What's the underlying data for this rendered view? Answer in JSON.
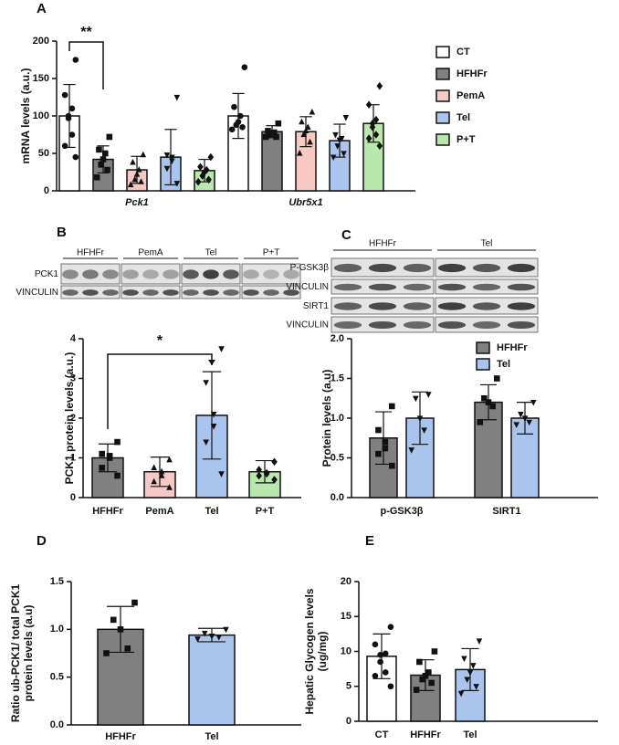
{
  "chart_data": [
    {
      "type": "bar",
      "panel": "A",
      "ylabel": "mRNA levels (a.u.)",
      "categories": [
        "Pck1",
        "Ubr5x1"
      ],
      "ylim": [
        0,
        200
      ],
      "yticks": [
        0,
        50,
        100,
        150,
        200
      ],
      "legend": "right",
      "annotations": [
        "**"
      ],
      "series": [
        {
          "name": "CT",
          "color": "#ffffff",
          "marker": "circle",
          "values": [
            100,
            100
          ],
          "errors": [
            42,
            30
          ],
          "points": [
            [
              175,
              128,
              110,
              100,
              97,
              75,
              60,
              45
            ],
            [
              165,
              112,
              100,
              92,
              88,
              85,
              82
            ]
          ]
        },
        {
          "name": "HFHFr",
          "color": "#808080",
          "marker": "square",
          "values": [
            42,
            79
          ],
          "errors": [
            18,
            8
          ],
          "points": [
            [
              72,
              55,
              50,
              42,
              35,
              28,
              18
            ],
            [
              90,
              80,
              78,
              77,
              75,
              72,
              72
            ]
          ]
        },
        {
          "name": "PemA",
          "color": "#f6c9c2",
          "marker": "triangle",
          "values": [
            28,
            79
          ],
          "errors": [
            18,
            20
          ],
          "points": [
            [
              48,
              38,
              28,
              22,
              15,
              12,
              8
            ],
            [
              105,
              92,
              85,
              80,
              75,
              65,
              50
            ]
          ]
        },
        {
          "name": "Tel",
          "color": "#a9c5ee",
          "marker": "triangle-down",
          "values": [
            45,
            67
          ],
          "errors": [
            37,
            22
          ],
          "points": [
            [
              125,
              48,
              45,
              40,
              30,
              10
            ],
            [
              98,
              75,
              70,
              68,
              60,
              50,
              45
            ]
          ]
        },
        {
          "name": "P+T",
          "color": "#b8e8ab",
          "marker": "diamond",
          "values": [
            27,
            90
          ],
          "errors": [
            15,
            25
          ],
          "points": [
            [
              45,
              32,
              28,
              25,
              20,
              15,
              12
            ],
            [
              140,
              115,
              95,
              90,
              85,
              75,
              70,
              60
            ]
          ]
        }
      ]
    },
    {
      "type": "bar",
      "panel": "B",
      "ylabel": "PCK1 protein levels (a.u.)",
      "blot_lanes": [
        "HFHFr",
        "PemA",
        "Tel",
        "P+T"
      ],
      "blot_rows": [
        "PCK1",
        "VINCULIN"
      ],
      "categories": [
        "HFHFr",
        "PemA",
        "Tel",
        "P+T"
      ],
      "values": [
        1.0,
        0.65,
        2.07,
        0.65
      ],
      "errors": [
        0.35,
        0.37,
        1.1,
        0.28
      ],
      "colors": [
        "#808080",
        "#f6c9c2",
        "#a9c5ee",
        "#b8e8ab"
      ],
      "markers": [
        "square",
        "triangle",
        "triangle-down",
        "diamond"
      ],
      "points": [
        [
          1.4,
          1.1,
          1.05,
          1.0,
          0.75,
          0.55
        ],
        [
          0.95,
          0.75,
          0.65,
          0.55,
          0.4,
          0.25
        ],
        [
          3.75,
          2.9,
          2.1,
          1.8,
          1.4,
          0.6
        ],
        [
          0.9,
          0.7,
          0.62,
          0.6,
          0.55,
          0.45
        ]
      ],
      "ylim": [
        0,
        4
      ],
      "yticks": [
        0,
        1,
        2,
        3,
        4
      ],
      "annotations": [
        "*"
      ]
    },
    {
      "type": "bar",
      "panel": "C",
      "ylabel": "Protein levels (a.u)",
      "blot_lanes": [
        "HFHFr",
        "Tel"
      ],
      "blot_rows": [
        "P-GSK3β",
        "VINCULIN",
        "SIRT1",
        "VINCULIN"
      ],
      "categories": [
        "p-GSK3β",
        "SIRT1"
      ],
      "legend": "top-right",
      "ylim": [
        0,
        2
      ],
      "yticks": [
        {
          "value": 0,
          "label": "0.0"
        },
        {
          "value": 0.5,
          "label": "0.5"
        },
        {
          "value": 1,
          "label": "1.0"
        },
        {
          "value": 1.5,
          "label": "1.5"
        },
        {
          "value": 2,
          "label": "2.0"
        }
      ],
      "series": [
        {
          "name": "HFHFr",
          "color": "#808080",
          "marker": "square",
          "values": [
            0.75,
            1.2
          ],
          "errors": [
            0.33,
            0.22
          ],
          "points": [
            [
              1.15,
              0.85,
              0.7,
              0.62,
              0.55,
              0.4
            ],
            [
              1.5,
              1.25,
              1.2,
              1.15,
              0.95
            ]
          ]
        },
        {
          "name": "Tel",
          "color": "#a9c5ee",
          "marker": "triangle-down",
          "values": [
            1.0,
            1.0
          ],
          "errors": [
            0.33,
            0.2
          ],
          "points": [
            [
              1.3,
              1.25,
              1.0,
              0.85,
              0.6
            ],
            [
              1.2,
              1.05,
              1.0,
              0.95,
              0.92
            ]
          ]
        }
      ]
    },
    {
      "type": "bar",
      "panel": "D",
      "ylabel": [
        "Ratio ub-PCK1/ total PCK1",
        "protein levels (a.u)"
      ],
      "categories": [
        "HFHFr",
        "Tel"
      ],
      "values": [
        1.0,
        0.94
      ],
      "errors": [
        0.24,
        0.07
      ],
      "colors": [
        "#808080",
        "#a9c5ee"
      ],
      "markers": [
        "square",
        "triangle-down"
      ],
      "points": [
        [
          1.28,
          1.1,
          1.0,
          0.8,
          0.75
        ],
        [
          1.0,
          0.96,
          0.93,
          0.92,
          0.9
        ]
      ],
      "ylim": [
        0,
        1.5
      ],
      "yticks": [
        {
          "value": 0,
          "label": "0.0"
        },
        {
          "value": 0.5,
          "label": "0.5"
        },
        {
          "value": 1,
          "label": "1.0"
        },
        {
          "value": 1.5,
          "label": "1.5"
        }
      ]
    },
    {
      "type": "bar",
      "panel": "E",
      "ylabel": [
        "Hepatic Glycogen levels",
        "(ug/mg)"
      ],
      "categories": [
        "CT",
        "HFHFr",
        "Tel"
      ],
      "values": [
        9.3,
        6.6,
        7.4
      ],
      "errors": [
        3.2,
        2.2,
        3.0
      ],
      "colors": [
        "#ffffff",
        "#808080",
        "#a9c5ee"
      ],
      "markers": [
        "circle",
        "square",
        "triangle-down"
      ],
      "points": [
        [
          13.5,
          11,
          9.7,
          9.5,
          8.5,
          7,
          6.5,
          5
        ],
        [
          10,
          8.5,
          7,
          6.5,
          6,
          5.5,
          4.5
        ],
        [
          11.5,
          9,
          8,
          7,
          6,
          5,
          4
        ]
      ],
      "ylim": [
        0,
        20
      ],
      "yticks": [
        0,
        5,
        10,
        15,
        20
      ]
    }
  ]
}
